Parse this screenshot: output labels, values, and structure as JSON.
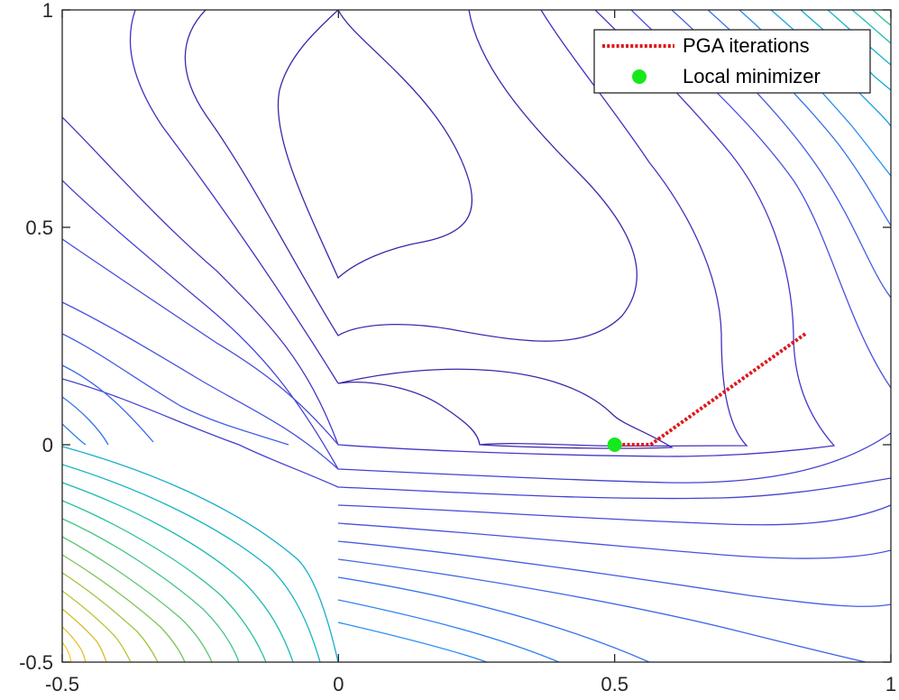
{
  "chart_data": {
    "type": "line",
    "title": "",
    "xlabel": "",
    "ylabel": "",
    "xlim": [
      -0.5,
      1
    ],
    "ylim": [
      -0.5,
      1
    ],
    "xticks": [
      -0.5,
      0,
      0.5,
      1
    ],
    "yticks": [
      -0.5,
      0,
      0.5,
      1
    ],
    "xtick_labels": [
      "-0.5",
      "0",
      "0.5",
      "1"
    ],
    "ytick_labels": [
      "-0.5",
      "0",
      "0.5",
      "1"
    ],
    "grid": false,
    "legend_position": "top-right",
    "colormap": [
      "#3e26a8",
      "#4a51e0",
      "#2d83f2",
      "#18adcf",
      "#2ac288",
      "#9fc43c",
      "#e1b935",
      "#f9d524"
    ],
    "series": [
      {
        "name": "PGA iterations",
        "kind": "line",
        "style": "dotted",
        "color": "#e0161b",
        "x": [
          0.845,
          0.565,
          0.51,
          0.5
        ],
        "y": [
          0.255,
          0.0,
          0.0,
          0.0
        ]
      },
      {
        "name": "Local minimizer",
        "kind": "marker",
        "color": "#16e81c",
        "x": [
          0.5
        ],
        "y": [
          0.0
        ]
      }
    ]
  }
}
